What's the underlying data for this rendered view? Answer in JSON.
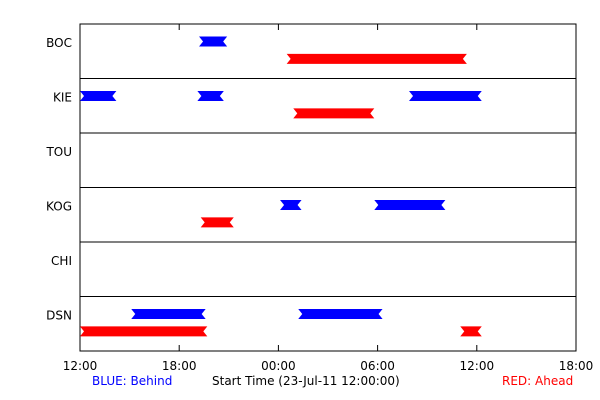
{
  "chart_data": {
    "type": "timeline",
    "xlabel": "Start Time (23-Jul-11 12:00:00)",
    "x_ticks": [
      "12:00",
      "18:00",
      "00:00",
      "06:00",
      "12:00",
      "18:00"
    ],
    "x_range_hours": [
      0,
      30
    ],
    "rows": [
      "BOC",
      "KIE",
      "TOU",
      "KOG",
      "CHI",
      "DSN"
    ],
    "series": [
      {
        "name": "BLUE: Behind",
        "color": "#0000ff",
        "legend_position": "bottom-left"
      },
      {
        "name": "RED: Ahead",
        "color": "#ff0000",
        "legend_position": "bottom-right"
      }
    ],
    "segments": [
      {
        "row": "BOC",
        "series": "BLUE: Behind",
        "start": 7.2,
        "end": 8.9
      },
      {
        "row": "BOC",
        "series": "RED: Ahead",
        "start": 12.5,
        "end": 23.4
      },
      {
        "row": "KIE",
        "series": "BLUE: Behind",
        "start": 0.0,
        "end": 2.2
      },
      {
        "row": "KIE",
        "series": "BLUE: Behind",
        "start": 7.1,
        "end": 8.7
      },
      {
        "row": "KIE",
        "series": "BLUE: Behind",
        "start": 19.9,
        "end": 24.3
      },
      {
        "row": "KIE",
        "series": "RED: Ahead",
        "start": 12.9,
        "end": 17.8
      },
      {
        "row": "KOG",
        "series": "BLUE: Behind",
        "start": 12.1,
        "end": 13.4
      },
      {
        "row": "KOG",
        "series": "BLUE: Behind",
        "start": 17.8,
        "end": 22.1
      },
      {
        "row": "KOG",
        "series": "RED: Ahead",
        "start": 7.3,
        "end": 9.3
      },
      {
        "row": "DSN",
        "series": "BLUE: Behind",
        "start": 3.1,
        "end": 7.6
      },
      {
        "row": "DSN",
        "series": "BLUE: Behind",
        "start": 13.2,
        "end": 18.3
      },
      {
        "row": "DSN",
        "series": "RED: Ahead",
        "start": 0.0,
        "end": 7.7
      },
      {
        "row": "DSN",
        "series": "RED: Ahead",
        "start": 23.0,
        "end": 24.3
      }
    ]
  }
}
